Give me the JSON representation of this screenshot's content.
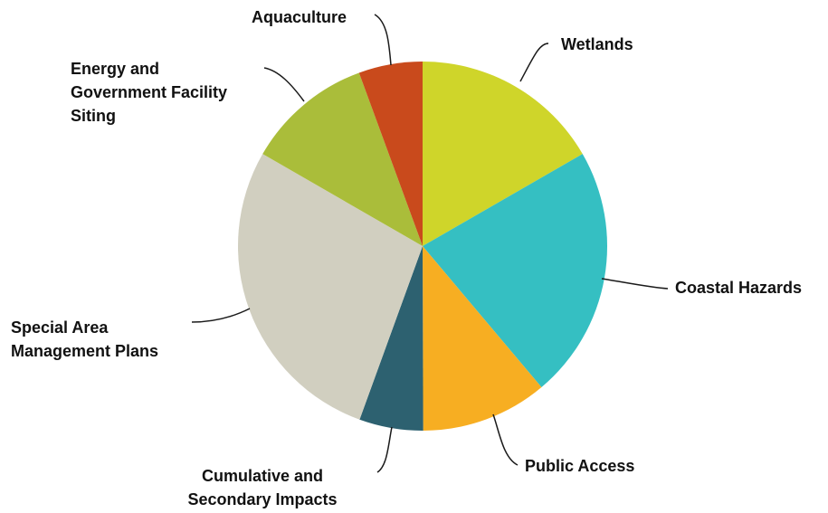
{
  "chart_data": {
    "type": "pie",
    "title": "",
    "slices": [
      {
        "label_lines": [
          "Wetlands"
        ],
        "value": 16.7,
        "color": "#cfd52a"
      },
      {
        "label_lines": [
          "Coastal Hazards"
        ],
        "value": 22.2,
        "color": "#35bfc2"
      },
      {
        "label_lines": [
          "Public Access"
        ],
        "value": 11.1,
        "color": "#f7ae22"
      },
      {
        "label_lines": [
          "Cumulative and",
          "Secondary Impacts"
        ],
        "value": 5.6,
        "color": "#2d6170"
      },
      {
        "label_lines": [
          "Special Area",
          "Management Plans"
        ],
        "value": 27.8,
        "color": "#d1cfc0"
      },
      {
        "label_lines": [
          "Energy and",
          "Government Facility",
          "Siting"
        ],
        "value": 11.1,
        "color": "#aabd3a"
      },
      {
        "label_lines": [
          "Aquaculture"
        ],
        "value": 5.6,
        "color": "#c94a1c"
      }
    ]
  }
}
